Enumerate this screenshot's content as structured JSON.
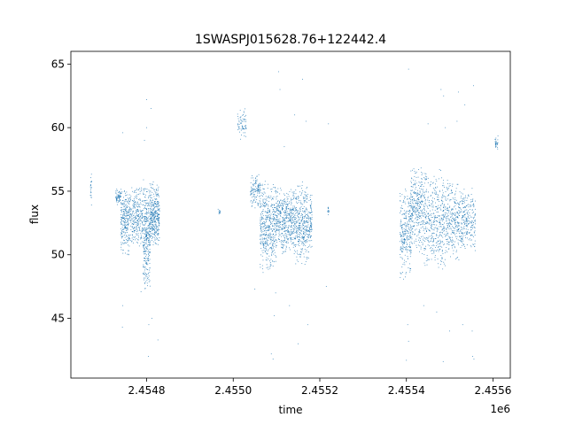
{
  "chart_data": {
    "type": "scatter",
    "title": "1SWASPJ015628.76+122442.4",
    "xlabel": "time",
    "ylabel": "flux",
    "x_offset_label": "1e6",
    "xlim": [
      2454625,
      2455640
    ],
    "ylim": [
      40.3,
      66.0
    ],
    "x_ticks": [
      2454800,
      2455000,
      2455200,
      2455400,
      2455600
    ],
    "x_tick_labels": [
      "2.4548",
      "2.4550",
      "2.4552",
      "2.4554",
      "2.4556"
    ],
    "y_ticks": [
      45,
      50,
      55,
      60,
      65
    ],
    "y_tick_labels": [
      "45",
      "50",
      "55",
      "60",
      "65"
    ],
    "grid": false,
    "marker_color": "#1f77b4",
    "clusters": [
      {
        "x": [
          2454670,
          2454673
        ],
        "y": [
          53.8,
          56.6
        ],
        "n": 20
      },
      {
        "x": [
          2454728,
          2454740
        ],
        "y": [
          53.9,
          55.2
        ],
        "n": 60
      },
      {
        "x": [
          2454740,
          2454760
        ],
        "y": [
          49.8,
          55.5
        ],
        "n": 240
      },
      {
        "x": [
          2454760,
          2454792
        ],
        "y": [
          50.5,
          55.5
        ],
        "n": 280
      },
      {
        "x": [
          2454792,
          2454808
        ],
        "y": [
          47.0,
          56.0
        ],
        "n": 320
      },
      {
        "x": [
          2454808,
          2454830
        ],
        "y": [
          50.5,
          55.8
        ],
        "n": 340
      },
      {
        "x": [
          2454965,
          2454970
        ],
        "y": [
          53.0,
          53.8
        ],
        "n": 12
      },
      {
        "x": [
          2455010,
          2455030
        ],
        "y": [
          59.0,
          61.5
        ],
        "n": 70
      },
      {
        "x": [
          2455040,
          2455062
        ],
        "y": [
          53.5,
          56.5
        ],
        "n": 120
      },
      {
        "x": [
          2455062,
          2455100
        ],
        "y": [
          48.5,
          56.0
        ],
        "n": 460
      },
      {
        "x": [
          2455100,
          2455140
        ],
        "y": [
          50.0,
          55.5
        ],
        "n": 420
      },
      {
        "x": [
          2455140,
          2455175
        ],
        "y": [
          49.0,
          56.0
        ],
        "n": 380
      },
      {
        "x": [
          2455175,
          2455182
        ],
        "y": [
          50.5,
          55.0
        ],
        "n": 80
      },
      {
        "x": [
          2455218,
          2455222
        ],
        "y": [
          53.0,
          54.0
        ],
        "n": 12
      },
      {
        "x": [
          2455385,
          2455410
        ],
        "y": [
          48.0,
          55.5
        ],
        "n": 260
      },
      {
        "x": [
          2455410,
          2455440
        ],
        "y": [
          50.0,
          57.0
        ],
        "n": 320
      },
      {
        "x": [
          2455440,
          2455490
        ],
        "y": [
          48.5,
          57.0
        ],
        "n": 420
      },
      {
        "x": [
          2455490,
          2455530
        ],
        "y": [
          49.5,
          56.0
        ],
        "n": 320
      },
      {
        "x": [
          2455530,
          2455560
        ],
        "y": [
          50.0,
          55.5
        ],
        "n": 200
      },
      {
        "x": [
          2455605,
          2455612
        ],
        "y": [
          58.0,
          59.5
        ],
        "n": 30
      }
    ],
    "outliers": [
      [
        2454745,
        59.6
      ],
      [
        2454745,
        46.0
      ],
      [
        2454744,
        44.3
      ],
      [
        2454800,
        62.2
      ],
      [
        2454810,
        61.5
      ],
      [
        2454795,
        59.0
      ],
      [
        2454804,
        42.0
      ],
      [
        2454826,
        43.3
      ],
      [
        2454805,
        44.5
      ],
      [
        2454812,
        45.0
      ],
      [
        2454787,
        47.1
      ],
      [
        2454800,
        60.0
      ],
      [
        2455105,
        64.4
      ],
      [
        2455108,
        63.0
      ],
      [
        2455088,
        42.2
      ],
      [
        2455092,
        41.8
      ],
      [
        2455150,
        43.0
      ],
      [
        2455160,
        63.8
      ],
      [
        2455172,
        44.5
      ],
      [
        2455130,
        46.0
      ],
      [
        2455098,
        47.0
      ],
      [
        2455168,
        60.5
      ],
      [
        2455050,
        47.3
      ],
      [
        2455220,
        60.3
      ],
      [
        2455095,
        45.2
      ],
      [
        2455142,
        61.0
      ],
      [
        2455215,
        47.5
      ],
      [
        2455118,
        58.5
      ],
      [
        2455405,
        64.6
      ],
      [
        2455400,
        41.7
      ],
      [
        2455405,
        43.2
      ],
      [
        2455403,
        44.5
      ],
      [
        2455480,
        63.0
      ],
      [
        2455486,
        62.5
      ],
      [
        2455520,
        62.8
      ],
      [
        2455555,
        63.3
      ],
      [
        2455485,
        41.6
      ],
      [
        2455500,
        44.0
      ],
      [
        2455553,
        42.0
      ],
      [
        2455556,
        41.8
      ],
      [
        2455530,
        44.5
      ],
      [
        2455470,
        45.5
      ],
      [
        2455450,
        60.3
      ],
      [
        2455490,
        60.0
      ],
      [
        2455517,
        60.5
      ],
      [
        2455440,
        46.0
      ],
      [
        2455552,
        44.0
      ],
      [
        2455535,
        61.8
      ]
    ]
  }
}
